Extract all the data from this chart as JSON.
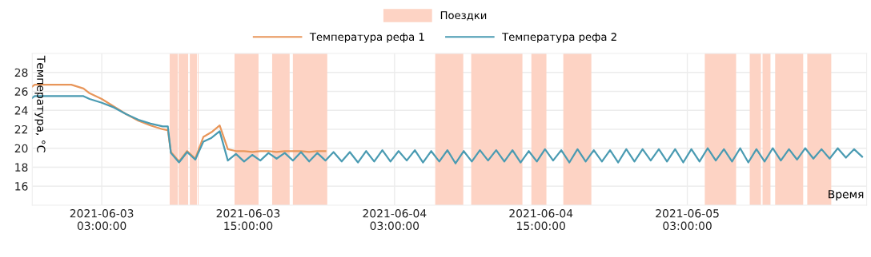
{
  "chart_data": {
    "type": "line",
    "xlabel": "Время",
    "ylabel": "Температура, °C",
    "x": [
      "2021-06-02T21:18",
      "2021-06-02T21:30",
      "2021-06-03T00:30",
      "2021-06-03T01:30",
      "2021-06-03T02:00",
      "2021-06-03T03:00",
      "2021-06-03T04:00",
      "2021-06-03T05:00",
      "2021-06-03T06:00",
      "2021-06-03T07:00",
      "2021-06-03T08:00",
      "2021-06-03T08:25",
      "2021-06-03T08:40",
      "2021-06-03T09:20",
      "2021-06-03T10:00",
      "2021-06-03T10:40",
      "2021-06-03T11:20",
      "2021-06-03T12:00",
      "2021-06-03T12:40",
      "2021-06-03T13:20",
      "2021-06-03T14:00",
      "2021-06-03T14:40",
      "2021-06-03T15:20",
      "2021-06-03T16:00",
      "2021-06-03T16:40",
      "2021-06-03T17:20",
      "2021-06-03T18:00",
      "2021-06-03T18:40",
      "2021-06-03T19:20",
      "2021-06-03T20:00",
      "2021-06-03T20:40",
      "2021-06-03T21:20",
      "2021-06-03T22:00",
      "2021-06-03T22:40",
      "2021-06-03T23:20",
      "2021-06-04T00:00",
      "2021-06-04T00:40",
      "2021-06-04T01:20",
      "2021-06-04T02:00",
      "2021-06-04T02:40",
      "2021-06-04T03:20",
      "2021-06-04T04:00",
      "2021-06-04T04:40",
      "2021-06-04T05:20",
      "2021-06-04T06:00",
      "2021-06-04T06:40",
      "2021-06-04T07:20",
      "2021-06-04T08:00",
      "2021-06-04T08:40",
      "2021-06-04T09:20",
      "2021-06-04T10:00",
      "2021-06-04T10:40",
      "2021-06-04T11:20",
      "2021-06-04T12:00",
      "2021-06-04T12:40",
      "2021-06-04T13:20",
      "2021-06-04T14:00",
      "2021-06-04T14:40",
      "2021-06-04T15:20",
      "2021-06-04T16:00",
      "2021-06-04T16:40",
      "2021-06-04T17:20",
      "2021-06-04T18:00",
      "2021-06-04T18:40",
      "2021-06-04T19:20",
      "2021-06-04T20:00",
      "2021-06-04T20:40",
      "2021-06-04T21:20",
      "2021-06-04T22:00",
      "2021-06-04T22:40",
      "2021-06-04T23:20",
      "2021-06-05T00:00",
      "2021-06-05T00:40",
      "2021-06-05T01:20",
      "2021-06-05T02:00",
      "2021-06-05T02:40",
      "2021-06-05T03:20",
      "2021-06-05T04:00",
      "2021-06-05T04:40",
      "2021-06-05T05:20",
      "2021-06-05T06:00",
      "2021-06-05T06:40",
      "2021-06-05T07:20",
      "2021-06-05T08:00",
      "2021-06-05T08:40",
      "2021-06-05T09:20",
      "2021-06-05T10:00",
      "2021-06-05T10:40",
      "2021-06-05T11:20",
      "2021-06-05T12:00",
      "2021-06-05T12:40",
      "2021-06-05T13:20",
      "2021-06-05T14:00",
      "2021-06-05T14:40",
      "2021-06-05T15:20",
      "2021-06-05T16:00",
      "2021-06-05T16:40",
      "2021-06-05T17:20"
    ],
    "series": [
      {
        "name": "Температура рефа 1",
        "color": "#e8965a",
        "values": [
          26.5,
          26.7,
          26.7,
          26.3,
          25.8,
          25.2,
          24.4,
          23.6,
          22.9,
          22.4,
          22.0,
          21.9,
          19.6,
          18.6,
          19.7,
          18.9,
          21.2,
          21.7,
          22.4,
          19.9,
          19.7,
          19.7,
          19.6,
          19.7,
          19.7,
          19.6,
          19.7,
          19.7,
          19.7,
          19.6,
          19.7,
          19.7,
          null,
          null,
          null,
          null,
          null,
          null,
          null,
          null,
          null,
          null,
          null,
          null,
          null,
          null,
          null,
          null,
          null,
          null,
          null,
          null,
          null,
          null,
          null,
          null,
          null,
          null,
          null,
          null,
          null,
          null,
          null,
          null,
          null,
          null,
          null,
          null,
          null,
          null,
          null,
          null,
          null,
          null,
          null,
          null,
          null,
          null,
          null,
          null,
          null,
          null,
          null,
          null,
          null,
          null,
          null,
          null,
          null,
          null,
          null,
          null,
          null,
          null,
          null,
          null,
          null,
          null
        ]
      },
      {
        "name": "Температура рефа 2",
        "color": "#4a9bb2",
        "values": [
          25.3,
          25.5,
          25.5,
          25.5,
          25.2,
          24.8,
          24.3,
          23.6,
          23.0,
          22.6,
          22.3,
          22.3,
          19.5,
          18.5,
          19.6,
          18.8,
          20.7,
          21.1,
          21.8,
          18.7,
          19.4,
          18.6,
          19.3,
          18.7,
          19.5,
          18.9,
          19.5,
          18.7,
          19.6,
          18.6,
          19.5,
          18.7,
          19.6,
          18.6,
          19.6,
          18.5,
          19.7,
          18.6,
          19.8,
          18.6,
          19.7,
          18.7,
          19.8,
          18.5,
          19.7,
          18.6,
          19.8,
          18.4,
          19.7,
          18.6,
          19.8,
          18.7,
          19.8,
          18.6,
          19.8,
          18.5,
          19.7,
          18.6,
          19.9,
          18.7,
          19.8,
          18.5,
          19.9,
          18.6,
          19.8,
          18.6,
          19.8,
          18.5,
          19.9,
          18.6,
          19.9,
          18.7,
          19.9,
          18.6,
          19.9,
          18.5,
          19.9,
          18.6,
          20.0,
          18.7,
          19.9,
          18.6,
          20.0,
          18.5,
          19.9,
          18.6,
          20.0,
          18.7,
          19.9,
          18.8,
          20.0,
          18.9,
          19.9,
          18.9,
          20.0,
          19.0,
          19.9,
          19.1
        ]
      }
    ],
    "bands": [
      {
        "axis": "x",
        "from": "2021-06-03T08:34",
        "to": "2021-06-03T09:14",
        "label": "Поездки",
        "color": "#fdd3c4"
      },
      {
        "axis": "x",
        "from": "2021-06-03T09:18",
        "to": "2021-06-03T10:05",
        "color": "#fdd3c4"
      },
      {
        "axis": "x",
        "from": "2021-06-03T10:13",
        "to": "2021-06-03T10:48",
        "color": "#fdd3c4"
      },
      {
        "axis": "x",
        "from": "2021-06-03T10:52",
        "to": "2021-06-03T10:56",
        "color": "#fdd3c4"
      },
      {
        "axis": "x",
        "from": "2021-06-03T13:53",
        "to": "2021-06-03T15:51",
        "color": "#fdd3c4"
      },
      {
        "axis": "x",
        "from": "2021-06-03T16:58",
        "to": "2021-06-03T18:24",
        "color": "#fdd3c4"
      },
      {
        "axis": "x",
        "from": "2021-06-03T18:40",
        "to": "2021-06-03T21:29",
        "color": "#fdd3c4"
      },
      {
        "axis": "x",
        "from": "2021-06-04T06:20",
        "to": "2021-06-04T08:38",
        "color": "#fdd3c4"
      },
      {
        "axis": "x",
        "from": "2021-06-04T09:17",
        "to": "2021-06-04T13:29",
        "color": "#fdd3c4"
      },
      {
        "axis": "x",
        "from": "2021-06-04T14:13",
        "to": "2021-06-04T15:27",
        "color": "#fdd3c4"
      },
      {
        "axis": "x",
        "from": "2021-06-04T16:50",
        "to": "2021-06-04T19:08",
        "color": "#fdd3c4"
      },
      {
        "axis": "x",
        "from": "2021-06-05T04:26",
        "to": "2021-06-05T07:00",
        "color": "#fdd3c4"
      },
      {
        "axis": "x",
        "from": "2021-06-05T08:07",
        "to": "2021-06-05T09:02",
        "color": "#fdd3c4"
      },
      {
        "axis": "x",
        "from": "2021-06-05T09:10",
        "to": "2021-06-05T09:49",
        "color": "#fdd3c4"
      },
      {
        "axis": "x",
        "from": "2021-06-05T10:12",
        "to": "2021-06-05T12:30",
        "color": "#fdd3c4"
      },
      {
        "axis": "x",
        "from": "2021-06-05T12:50",
        "to": "2021-06-05T14:48",
        "color": "#fdd3c4"
      }
    ],
    "xlim": [
      "2021-06-02T21:18",
      "2021-06-05T17:42"
    ],
    "xticks": [
      {
        "value": "2021-06-03T03:00",
        "label": "2021-06-03\n03:00:00"
      },
      {
        "value": "2021-06-03T15:00",
        "label": "2021-06-03\n15:00:00"
      },
      {
        "value": "2021-06-04T03:00",
        "label": "2021-06-04\n03:00:00"
      },
      {
        "value": "2021-06-04T15:00",
        "label": "2021-06-04\n15:00:00"
      },
      {
        "value": "2021-06-05T03:00",
        "label": "2021-06-05\n03:00:00"
      }
    ],
    "ylim": [
      14,
      30
    ],
    "yticks": [
      16,
      18,
      20,
      22,
      24,
      26,
      28
    ],
    "grid": true,
    "legend": "top",
    "line_style": "solid",
    "marker": "none"
  }
}
